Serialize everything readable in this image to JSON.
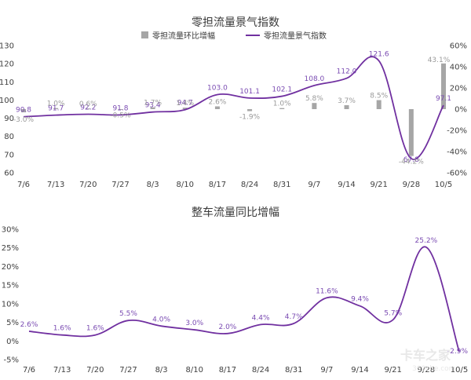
{
  "chart_data": [
    {
      "type": "bar+line",
      "title": "零担流量景气指数",
      "legend": [
        {
          "name": "零担流量环比增幅",
          "color": "#a6a6a6",
          "kind": "bar"
        },
        {
          "name": "零担流量景气指数",
          "color": "#7030a0",
          "kind": "line"
        }
      ],
      "categories": [
        "7/6",
        "7/13",
        "7/20",
        "7/27",
        "8/3",
        "8/10",
        "8/17",
        "8/24",
        "8/31",
        "9/7",
        "9/14",
        "9/21",
        "9/28",
        "10/5"
      ],
      "series": [
        {
          "name": "零担流量景气指数",
          "axis": "left",
          "color": "#7030a0",
          "values": [
            90.8,
            91.7,
            92.2,
            91.8,
            93.4,
            94.7,
            103.0,
            101.1,
            102.1,
            108.0,
            112.0,
            121.6,
            67.8,
            97.1
          ],
          "labels": [
            "90.8",
            "91.7",
            "92.2",
            "91.8",
            "93.4",
            "94.7",
            "103.0",
            "101.1",
            "102.1",
            "108.0",
            "112.0",
            "121.6",
            "67.8",
            "97.1"
          ]
        },
        {
          "name": "零担流量环比增幅",
          "axis": "right",
          "color": "#a6a6a6",
          "values": [
            -3.0,
            1.0,
            0.6,
            -0.5,
            1.7,
            1.4,
            2.6,
            -1.9,
            1.0,
            5.8,
            3.7,
            8.5,
            -44.2,
            43.1
          ],
          "labels": [
            "-3.0%",
            "1.0%",
            "0.6%",
            "-0.5%",
            "1.7%",
            "1.4%",
            "2.6%",
            "-1.9%",
            "1.0%",
            "5.8%",
            "3.7%",
            "8.5%",
            "-44.2%",
            "43.1%"
          ]
        }
      ],
      "y_left": {
        "ylim": [
          60,
          130
        ],
        "ticks": [
          60,
          70,
          80,
          90,
          100,
          110,
          120,
          130
        ],
        "tick_labels": [
          "60",
          "70",
          "80",
          "90",
          "100",
          "110",
          "120",
          "130"
        ]
      },
      "y_right": {
        "ylim": [
          -60,
          60
        ],
        "ticks": [
          -60,
          -40,
          -20,
          0,
          20,
          40,
          60
        ],
        "tick_labels": [
          "-60%",
          "-40%",
          "-20%",
          "0%",
          "20%",
          "40%",
          "60%"
        ]
      },
      "grid": false,
      "legend_position": "top"
    },
    {
      "type": "line",
      "title": "整车流量同比增幅",
      "categories": [
        "7/6",
        "7/13",
        "7/20",
        "7/27",
        "8/3",
        "8/10",
        "8/17",
        "8/24",
        "8/31",
        "9/7",
        "9/14",
        "9/21",
        "9/28",
        "10/5"
      ],
      "series": [
        {
          "color": "#7030a0",
          "values": [
            2.6,
            1.6,
            1.6,
            5.5,
            4.0,
            3.0,
            2.0,
            4.4,
            4.7,
            11.6,
            9.4,
            5.7,
            25.2,
            -2.9
          ],
          "labels": [
            "2.6%",
            "1.6%",
            "1.6%",
            "5.5%",
            "4.0%",
            "3.0%",
            "2.0%",
            "4.4%",
            "4.7%",
            "11.6%",
            "9.4%",
            "5.7%",
            "25.2%",
            "-2.9%"
          ]
        }
      ],
      "y": {
        "ylim": [
          -5,
          30
        ],
        "ticks": [
          -5,
          0,
          5,
          10,
          15,
          20,
          25,
          30
        ],
        "tick_labels": [
          "-5%",
          "0%",
          "5%",
          "10%",
          "15%",
          "20%",
          "25%",
          "30%"
        ]
      },
      "grid": false
    }
  ],
  "watermark": {
    "text": "卡车之家",
    "sub": "360che.com"
  }
}
